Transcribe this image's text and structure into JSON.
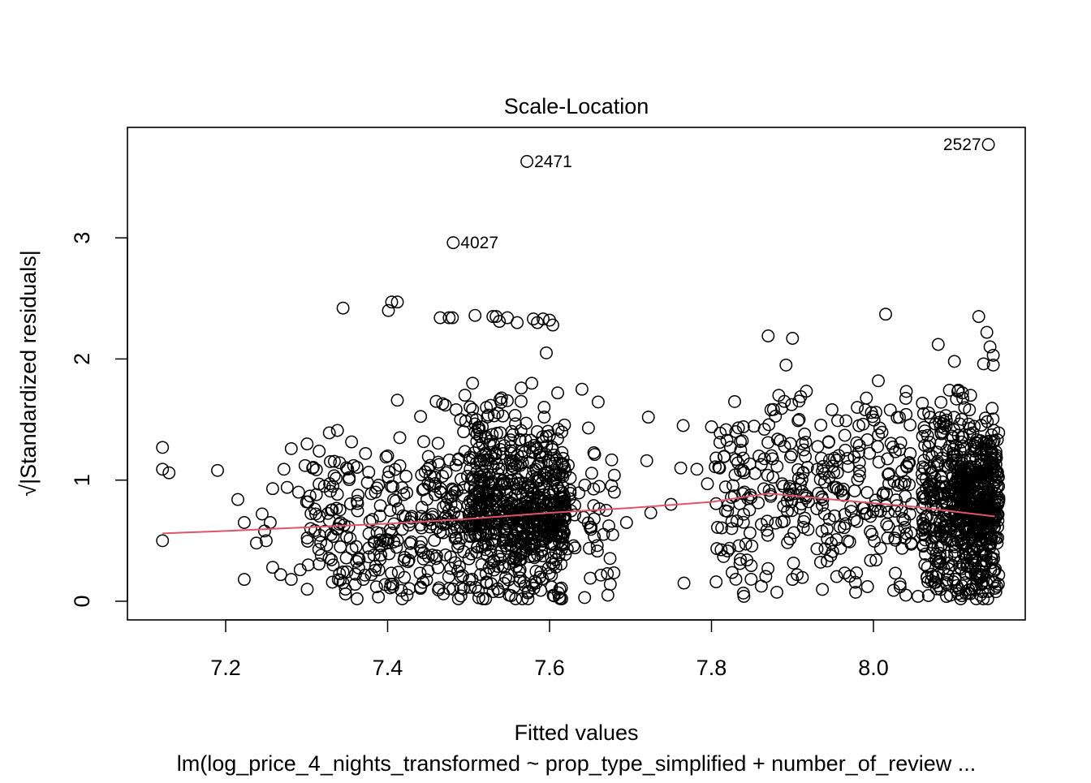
{
  "chart_data": {
    "type": "scatter",
    "title": "Scale-Location",
    "xlabel": "Fitted values",
    "ylabel": "√|Standardized residuals|",
    "subtitle": "lm(log_price_4_nights_transformed ~ prop_type_simplified + number_of_review ...",
    "xlim": [
      7.1,
      8.2
    ],
    "ylim": [
      0,
      3.85
    ],
    "x_ticks": [
      "7.2",
      "7.4",
      "7.6",
      "7.8",
      "8.0"
    ],
    "y_ticks": [
      "0",
      "1",
      "2",
      "3"
    ],
    "grid": false,
    "legend": "none",
    "colors": {
      "points": "#000000",
      "smoother": "#DF536B"
    },
    "labeled_points": [
      {
        "label": "2471",
        "x": 7.572,
        "y": 3.63,
        "side": "right"
      },
      {
        "label": "4027",
        "x": 7.481,
        "y": 2.96,
        "side": "right"
      },
      {
        "label": "2527",
        "x": 8.142,
        "y": 3.77,
        "side": "left"
      }
    ],
    "scatter_points": [
      [
        7.122,
        1.27
      ],
      [
        7.122,
        1.09
      ],
      [
        7.13,
        1.06
      ],
      [
        7.122,
        0.5
      ],
      [
        7.19,
        1.08
      ],
      [
        7.215,
        0.84
      ],
      [
        7.223,
        0.65
      ],
      [
        7.223,
        0.18
      ],
      [
        7.238,
        0.48
      ],
      [
        7.245,
        0.72
      ],
      [
        7.248,
        0.58
      ],
      [
        7.25,
        0.5
      ],
      [
        7.255,
        0.65
      ],
      [
        7.258,
        0.93
      ],
      [
        7.258,
        0.28
      ],
      [
        7.268,
        0.22
      ],
      [
        7.272,
        1.09
      ],
      [
        7.276,
        0.94
      ],
      [
        7.281,
        1.26
      ],
      [
        7.281,
        0.18
      ],
      [
        7.29,
        0.9
      ],
      [
        7.292,
        0.26
      ],
      [
        7.298,
        1.12
      ],
      [
        7.3,
        0.82
      ],
      [
        7.302,
        0.3
      ],
      [
        7.305,
        0.6
      ],
      [
        7.31,
        0.76
      ],
      [
        7.312,
        0.88
      ],
      [
        7.318,
        0.38
      ],
      [
        7.322,
        0.95
      ],
      [
        7.328,
        1.39
      ],
      [
        7.33,
        0.55
      ],
      [
        7.338,
        1.41
      ],
      [
        7.345,
        2.42
      ],
      [
        7.348,
        0.06
      ],
      [
        7.348,
        0.1
      ],
      [
        7.358,
        1.12
      ],
      [
        7.36,
        0.14
      ],
      [
        7.37,
        0.18
      ],
      [
        7.375,
        0.98
      ],
      [
        7.378,
        0.66
      ],
      [
        7.38,
        0.22
      ],
      [
        7.385,
        0.9
      ],
      [
        7.39,
        0.46
      ],
      [
        7.398,
        1.19
      ],
      [
        7.4,
        0.48
      ],
      [
        7.401,
        2.4
      ],
      [
        7.405,
        2.47
      ],
      [
        7.412,
        2.47
      ],
      [
        7.412,
        1.66
      ],
      [
        7.415,
        1.35
      ],
      [
        7.418,
        0.02
      ],
      [
        7.42,
        0.88
      ],
      [
        7.43,
        0.7
      ],
      [
        7.44,
        0.45
      ],
      [
        7.45,
        0.25
      ],
      [
        7.452,
        0.96
      ],
      [
        7.46,
        1.65
      ],
      [
        7.465,
        2.34
      ],
      [
        7.468,
        1.63
      ],
      [
        7.472,
        0.7
      ],
      [
        7.476,
        2.34
      ],
      [
        7.48,
        2.34
      ],
      [
        7.49,
        1.5
      ],
      [
        7.505,
        1.8
      ],
      [
        7.508,
        2.36
      ],
      [
        7.522,
        1.6
      ],
      [
        7.53,
        2.35
      ],
      [
        7.534,
        2.35
      ],
      [
        7.538,
        2.31
      ],
      [
        7.548,
        2.34
      ],
      [
        7.55,
        0.05
      ],
      [
        7.56,
        2.3
      ],
      [
        7.565,
        1.76
      ],
      [
        7.578,
        1.8
      ],
      [
        7.58,
        2.33
      ],
      [
        7.585,
        2.3
      ],
      [
        7.592,
        2.33
      ],
      [
        7.596,
        2.05
      ],
      [
        7.6,
        2.32
      ],
      [
        7.604,
        2.28
      ],
      [
        7.61,
        1.72
      ],
      [
        7.612,
        0.03
      ],
      [
        7.615,
        0.02
      ],
      [
        7.64,
        1.75
      ],
      [
        7.648,
        1.43
      ],
      [
        7.655,
        0.68
      ],
      [
        7.67,
        0.75
      ],
      [
        7.672,
        0.05
      ],
      [
        7.675,
        0.14
      ],
      [
        7.678,
        0.55
      ],
      [
        7.68,
        1.04
      ],
      [
        7.68,
        0.9
      ],
      [
        7.695,
        0.65
      ],
      [
        7.72,
        1.16
      ],
      [
        7.722,
        1.52
      ],
      [
        7.725,
        0.73
      ],
      [
        7.75,
        0.8
      ],
      [
        7.762,
        1.1
      ],
      [
        7.765,
        1.45
      ],
      [
        7.766,
        0.15
      ],
      [
        7.782,
        1.09
      ],
      [
        7.795,
        0.97
      ],
      [
        7.8,
        1.44
      ],
      [
        7.81,
        1.1
      ],
      [
        7.87,
        2.19
      ],
      [
        7.9,
        2.17
      ],
      [
        7.892,
        1.95
      ],
      [
        7.915,
        1.38
      ],
      [
        7.9,
        0.18
      ],
      [
        7.89,
        1.65
      ],
      [
        7.84,
        0.04
      ],
      [
        7.825,
        0.6
      ],
      [
        7.83,
        1.4
      ],
      [
        8.015,
        2.37
      ],
      [
        8.006,
        1.82
      ],
      [
        7.98,
        1.6
      ],
      [
        7.99,
        1.58
      ],
      [
        8.003,
        1.56
      ],
      [
        8.07,
        1.52
      ],
      [
        8.08,
        2.12
      ],
      [
        8.1,
        1.98
      ],
      [
        8.025,
        0.09
      ],
      [
        8.04,
        0.05
      ],
      [
        8.055,
        0.04
      ],
      [
        8.13,
        2.35
      ],
      [
        8.14,
        2.22
      ],
      [
        8.144,
        2.1
      ],
      [
        8.136,
        1.96
      ],
      [
        8.148,
        1.95
      ],
      [
        8.148,
        2.03
      ],
      [
        8.11,
        1.72
      ],
      [
        8.12,
        1.7
      ],
      [
        8.095,
        0.05
      ],
      [
        8.132,
        0.05
      ]
    ],
    "clusters": [
      {
        "x": [
          7.3,
          7.43
        ],
        "y_center": 0.62,
        "y_spread": 0.32,
        "count": 150
      },
      {
        "x": [
          7.44,
          7.5
        ],
        "y_center": 0.72,
        "y_spread": 0.4,
        "count": 120
      },
      {
        "x": [
          7.5,
          7.62
        ],
        "y_center": 0.78,
        "y_spread": 0.42,
        "count": 420
      },
      {
        "x": [
          7.5,
          7.62
        ],
        "y_center": 0.72,
        "y_spread": 0.22,
        "count": 260
      },
      {
        "x": [
          7.62,
          7.68
        ],
        "y_center": 0.75,
        "y_spread": 0.38,
        "count": 40
      },
      {
        "x": [
          7.8,
          7.92
        ],
        "y_center": 0.92,
        "y_spread": 0.38,
        "count": 150
      },
      {
        "x": [
          7.93,
          8.05
        ],
        "y_center": 0.85,
        "y_spread": 0.4,
        "count": 170
      },
      {
        "x": [
          8.06,
          8.155
        ],
        "y_center": 0.8,
        "y_spread": 0.42,
        "count": 460
      },
      {
        "x": [
          8.1,
          8.155
        ],
        "y_center": 0.78,
        "y_spread": 0.28,
        "count": 260
      }
    ],
    "smoother": [
      [
        7.122,
        0.56
      ],
      [
        7.2,
        0.58
      ],
      [
        7.3,
        0.61
      ],
      [
        7.4,
        0.64
      ],
      [
        7.5,
        0.68
      ],
      [
        7.6,
        0.73
      ],
      [
        7.7,
        0.77
      ],
      [
        7.8,
        0.82
      ],
      [
        7.87,
        0.89
      ],
      [
        7.95,
        0.84
      ],
      [
        8.05,
        0.78
      ],
      [
        8.15,
        0.7
      ]
    ]
  }
}
